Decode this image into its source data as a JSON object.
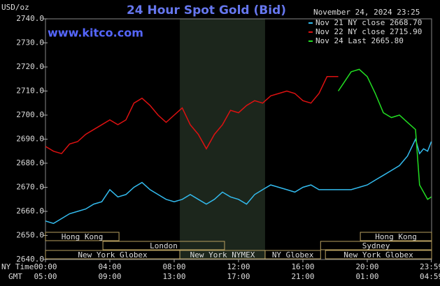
{
  "chart_data": {
    "type": "line",
    "title": "24 Hour Spot Gold (Bid)",
    "source": "www.kitco.com",
    "y_unit": "USD/oz",
    "timestamp": "November 24, 2024 23:25",
    "x_row_label": "NY Time",
    "x2_row_label": "GMT",
    "xlim": [
      0,
      24
    ],
    "ylim": [
      2640,
      2740
    ],
    "xticks": [
      {
        "value": 0,
        "label": "00:00"
      },
      {
        "value": 4,
        "label": "04:00"
      },
      {
        "value": 8,
        "label": "08:00"
      },
      {
        "value": 12,
        "label": "12:00"
      },
      {
        "value": 16,
        "label": "16:00"
      },
      {
        "value": 20,
        "label": "20:00"
      },
      {
        "value": 23.983,
        "label": "23:59"
      }
    ],
    "x2ticks": [
      {
        "value": 0,
        "label": "05:00"
      },
      {
        "value": 4,
        "label": "09:00"
      },
      {
        "value": 8,
        "label": "13:00"
      },
      {
        "value": 12,
        "label": "17:00"
      },
      {
        "value": 16,
        "label": "21:00"
      },
      {
        "value": 20,
        "label": "01:00"
      },
      {
        "value": 23.983,
        "label": "04:59"
      }
    ],
    "yticks": [
      {
        "value": 2640,
        "label": "2640.0"
      },
      {
        "value": 2650,
        "label": "2650.0"
      },
      {
        "value": 2660,
        "label": "2660.0"
      },
      {
        "value": 2670,
        "label": "2670.0"
      },
      {
        "value": 2680,
        "label": "2680.0"
      },
      {
        "value": 2690,
        "label": "2690.0"
      },
      {
        "value": 2700,
        "label": "2700.0"
      },
      {
        "value": 2710,
        "label": "2710.0"
      },
      {
        "value": 2720,
        "label": "2720.0"
      },
      {
        "value": 2730,
        "label": "2730.0"
      },
      {
        "value": 2740,
        "label": "2740.0"
      }
    ],
    "highlight": {
      "start": 8.35,
      "end": 13.65,
      "color": "#1c261c"
    },
    "sessions": [
      [
        {
          "name": "Hong Kong",
          "start": 0,
          "end": 4.57
        },
        {
          "name": "Hong Kong",
          "start": 19.57,
          "end": 24
        }
      ],
      [
        {
          "name": "London",
          "start": 3.57,
          "end": 11.13
        },
        {
          "name": "Sydney",
          "start": 17.1,
          "end": 24
        }
      ],
      [
        {
          "name": "New York Globex",
          "start": 0,
          "end": 8.35
        },
        {
          "name": "New York NYMEX",
          "start": 8.35,
          "end": 13.65
        },
        {
          "name": "NY Globex",
          "start": 13.65,
          "end": 17.1
        },
        {
          "name": "New York Globex",
          "start": 17.4,
          "end": 24
        }
      ]
    ],
    "series": [
      {
        "name": "Nov 21 NY close 2668.70",
        "color": "#33bbee",
        "x": [
          0,
          0.5,
          1,
          1.5,
          2,
          2.5,
          3,
          3.5,
          4,
          4.5,
          5,
          5.5,
          6,
          6.5,
          7,
          7.5,
          8,
          8.5,
          9,
          9.5,
          10,
          10.5,
          11,
          11.5,
          12,
          12.5,
          13,
          13.5,
          14,
          14.5,
          15,
          15.5,
          16,
          16.5,
          17,
          17.5,
          18,
          18.5,
          19,
          19.5,
          20,
          20.5,
          21,
          21.5,
          22,
          22.5,
          23,
          23.25,
          23.5,
          23.75,
          23.983
        ],
        "values": [
          2656,
          2655,
          2657,
          2659,
          2660,
          2661,
          2663,
          2664,
          2669,
          2666,
          2667,
          2670,
          2672,
          2669,
          2667,
          2665,
          2664,
          2665,
          2667,
          2665,
          2663,
          2665,
          2668,
          2666,
          2665,
          2663,
          2667,
          2669,
          2671,
          2670,
          2669,
          2668,
          2670,
          2671,
          2669,
          2669,
          2669,
          2669,
          2669,
          2670,
          2671,
          2673,
          2675,
          2677,
          2679,
          2683,
          2690,
          2684,
          2686,
          2685,
          2689
        ]
      },
      {
        "name": "Nov 22 NY close 2715.90",
        "color": "#dd1111",
        "x": [
          0,
          0.5,
          1,
          1.5,
          2,
          2.5,
          3,
          3.5,
          4,
          4.5,
          5,
          5.5,
          6,
          6.5,
          7,
          7.5,
          8,
          8.5,
          9,
          9.5,
          10,
          10.5,
          11,
          11.5,
          12,
          12.5,
          13,
          13.5,
          14,
          14.5,
          15,
          15.5,
          16,
          16.5,
          17,
          17.5,
          18,
          18.2
        ],
        "values": [
          2687,
          2685,
          2684,
          2688,
          2689,
          2692,
          2694,
          2696,
          2698,
          2696,
          2698,
          2705,
          2707,
          2704,
          2700,
          2697,
          2700,
          2703,
          2696,
          2692,
          2686,
          2692,
          2696,
          2702,
          2701,
          2704,
          2706,
          2705,
          2708,
          2709,
          2710,
          2709,
          2706,
          2705,
          2709,
          2716,
          2716,
          2716
        ]
      },
      {
        "name": "Nov 24 Last 2665.80",
        "color": "#22dd22",
        "x": [
          18.2,
          18.5,
          19,
          19.5,
          20,
          20.5,
          21,
          21.5,
          22,
          22.5,
          23,
          23.25,
          23.5,
          23.75,
          23.983
        ],
        "values": [
          2710,
          2713,
          2718,
          2719,
          2716,
          2709,
          2701,
          2699,
          2700,
          2697,
          2694,
          2671,
          2668,
          2665,
          2666
        ]
      }
    ]
  }
}
